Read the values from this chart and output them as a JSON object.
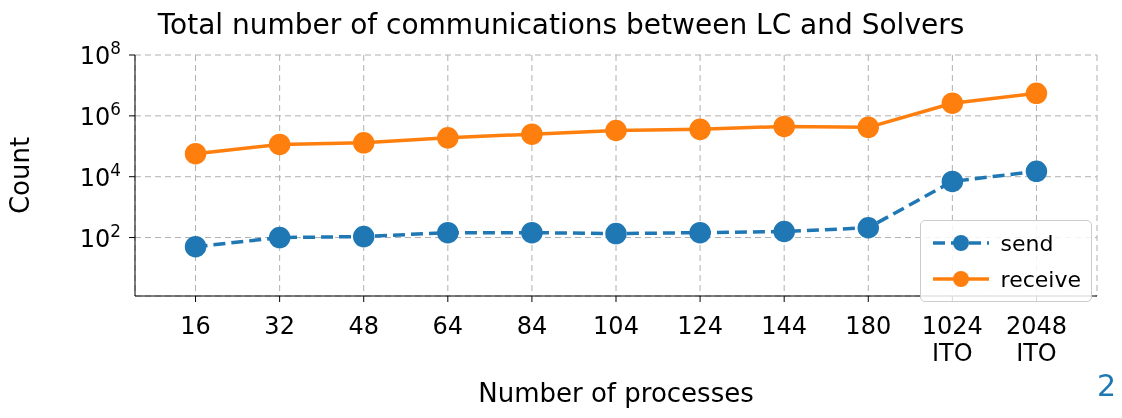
{
  "chart_data": {
    "type": "line",
    "title": "Total number of communications between LC and Solvers",
    "xlabel": "Number of processes",
    "ylabel": "Count",
    "categories": [
      "16",
      "32",
      "48",
      "64",
      "84",
      "104",
      "124",
      "144",
      "180",
      "1024\nITO",
      "2048\nITO"
    ],
    "series": [
      {
        "name": "send",
        "color": "#1f77b4",
        "line_style": "dashed",
        "values": [
          50,
          100,
          108,
          145,
          145,
          135,
          145,
          158,
          210,
          7000,
          15000
        ]
      },
      {
        "name": "receive",
        "color": "#ff7f0e",
        "line_style": "solid",
        "values": [
          57000,
          115000,
          130000,
          190000,
          250000,
          330000,
          360000,
          450000,
          420000,
          2600000,
          5500000
        ]
      }
    ],
    "log": "y",
    "ylim": [
      1.2,
      100000000
    ],
    "yticks": [
      {
        "value": 100,
        "label": "10$^{2}$"
      },
      {
        "value": 10000,
        "label": "10$^{4}$"
      },
      {
        "value": 1000000,
        "label": "10$^{6}$"
      },
      {
        "value": 100000000,
        "label": "10$^{8}$"
      }
    ],
    "grid": true,
    "legend": "bottom right",
    "marker": "circle",
    "annotations": [
      "2"
    ]
  }
}
